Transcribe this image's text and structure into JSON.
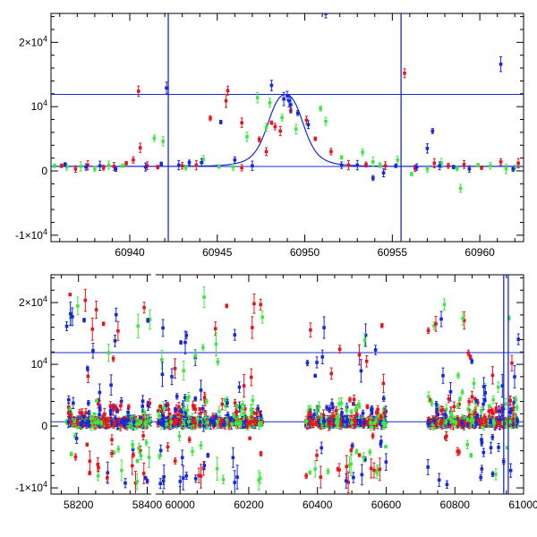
{
  "colors": {
    "red": "#e8151b",
    "green": "#3fe83f",
    "blue": "#1628d8",
    "axis": "#000000",
    "model": "#1628d8"
  },
  "chart_data": [
    {
      "type": "scatter",
      "title": "",
      "xlabel": "",
      "ylabel": "",
      "xlim": [
        60935.5,
        60962.5
      ],
      "ylim": [
        -11000,
        24500
      ],
      "grid": false,
      "legend": "none",
      "x_ticks": [
        60940,
        60945,
        60950,
        60955,
        60960
      ],
      "x_tick_labels": [
        "60940",
        "60945",
        "60950",
        "60955",
        "60960"
      ],
      "y_ticks": [
        -10000,
        0,
        10000,
        20000
      ],
      "y_tick_labels": [
        "-1×10⁴",
        "0",
        "10⁴",
        "2×10⁴"
      ],
      "hlines": [
        700,
        11900
      ],
      "vlines": [
        60942.2,
        60955.5
      ],
      "model": {
        "type": "lorentzian",
        "t0": 60948.9,
        "width": 1.3,
        "baseline": 700,
        "peak": 11900
      },
      "series": [
        {
          "color": "red",
          "points": [
            [
              60936.1,
              800
            ],
            [
              60936.9,
              300
            ],
            [
              60937.6,
              900
            ],
            [
              60938.5,
              500
            ],
            [
              60939.1,
              700
            ],
            [
              60939.8,
              1200
            ],
            [
              60940.2,
              1700
            ],
            [
              60940.6,
              3600
            ],
            [
              60940.5,
              12400
            ],
            [
              60941.0,
              800
            ],
            [
              60941.6,
              600
            ],
            [
              60943.0,
              800
            ],
            [
              60943.8,
              900
            ],
            [
              60944.6,
              8200
            ],
            [
              60945.5,
              10900
            ],
            [
              60945.6,
              12500
            ],
            [
              60946.4,
              500
            ],
            [
              60946.4,
              7500
            ],
            [
              60947.4,
              4900
            ],
            [
              60947.8,
              3000
            ],
            [
              60948.1,
              7500
            ],
            [
              60948.3,
              6900
            ],
            [
              60948.6,
              6200
            ],
            [
              60949.2,
              9400
            ],
            [
              60950.1,
              7900
            ],
            [
              60950.6,
              5000
            ],
            [
              60951.5,
              3000
            ],
            [
              60952.5,
              900
            ],
            [
              60953.5,
              1000
            ],
            [
              60954.6,
              800
            ],
            [
              60955.7,
              15200
            ],
            [
              60956.3,
              400
            ],
            [
              60957.4,
              1200
            ],
            [
              60958.2,
              800
            ],
            [
              60959.1,
              1000
            ],
            [
              60960.1,
              500
            ],
            [
              60961.2,
              1400
            ],
            [
              60962.2,
              1200
            ]
          ]
        },
        {
          "color": "green",
          "points": [
            [
              60935.7,
              800
            ],
            [
              60936.4,
              600
            ],
            [
              60937.2,
              700
            ],
            [
              60938.0,
              300
            ],
            [
              60938.8,
              900
            ],
            [
              60939.6,
              800
            ],
            [
              60941.4,
              5100
            ],
            [
              60941.9,
              4600
            ],
            [
              60943.2,
              500
            ],
            [
              60944.2,
              1800
            ],
            [
              60945.1,
              700
            ],
            [
              60945.9,
              600
            ],
            [
              60946.7,
              5300
            ],
            [
              60947.3,
              11400
            ],
            [
              60947.8,
              6800
            ],
            [
              60948.0,
              10600
            ],
            [
              60948.7,
              8300
            ],
            [
              60949.5,
              6500
            ],
            [
              60950.9,
              9700
            ],
            [
              60951.2,
              7700
            ],
            [
              60952.1,
              2100
            ],
            [
              60953.3,
              2900
            ],
            [
              60953.9,
              1400
            ],
            [
              60954.3,
              900
            ],
            [
              60955.3,
              1700
            ],
            [
              60956.1,
              -500
            ],
            [
              60957.0,
              300
            ],
            [
              60957.8,
              1200
            ],
            [
              60958.7,
              400
            ],
            [
              60958.9,
              -2700
            ],
            [
              60959.9,
              900
            ],
            [
              60960.6,
              800
            ],
            [
              60961.5,
              300
            ],
            [
              60962.0,
              500
            ]
          ]
        },
        {
          "color": "blue",
          "points": [
            [
              60936.3,
              1000
            ],
            [
              60937.5,
              600
            ],
            [
              60938.3,
              800
            ],
            [
              60939.2,
              300
            ],
            [
              60940.9,
              600
            ],
            [
              60941.8,
              1100
            ],
            [
              60942.1,
              12900
            ],
            [
              60942.8,
              900
            ],
            [
              60943.4,
              1300
            ],
            [
              60944.1,
              1300
            ],
            [
              60945.2,
              7600
            ],
            [
              60946.0,
              1700
            ],
            [
              60947.0,
              800
            ],
            [
              60948.1,
              13300
            ],
            [
              60948.8,
              11200
            ],
            [
              60949.0,
              11700
            ],
            [
              60949.1,
              10900
            ],
            [
              60949.2,
              10300
            ],
            [
              60949.6,
              9000
            ],
            [
              60950.2,
              7200
            ],
            [
              60951.2,
              24500
            ],
            [
              60952.1,
              900
            ],
            [
              60953.0,
              900
            ],
            [
              60953.9,
              -1100
            ],
            [
              60954.5,
              -300
            ],
            [
              60955.2,
              800
            ],
            [
              60956.4,
              600
            ],
            [
              60957.0,
              3500
            ],
            [
              60957.3,
              6200
            ],
            [
              60957.7,
              800
            ],
            [
              60958.5,
              600
            ],
            [
              60959.4,
              300
            ],
            [
              60961.2,
              16600
            ],
            [
              60961.9,
              300
            ]
          ]
        }
      ]
    },
    {
      "type": "scatter",
      "title": "",
      "xlabel": "",
      "ylabel": "",
      "xlim": [
        58120,
        61000
      ],
      "ylim": [
        -11000,
        24500
      ],
      "grid": false,
      "legend": "none",
      "x_ticks": [
        58200,
        58400,
        60000,
        60200,
        60400,
        60600,
        60800,
        61000
      ],
      "x_tick_labels": [
        "58200",
        "58400",
        "60000",
        "60200",
        "60400",
        "60600",
        "60800",
        "61000"
      ],
      "axis_break": true,
      "y_ticks": [
        -10000,
        0,
        10000,
        20000
      ],
      "y_tick_labels": [
        "-1×10⁴",
        "0",
        "10⁴",
        "2×10⁴"
      ],
      "hlines": [
        700,
        11900
      ],
      "vlines": [
        60942.2,
        60955.5
      ],
      "seasons": [
        [
          58165,
          58410
        ],
        [
          59935,
          60240
        ],
        [
          60365,
          60600
        ],
        [
          60720,
          60985
        ]
      ]
    }
  ]
}
